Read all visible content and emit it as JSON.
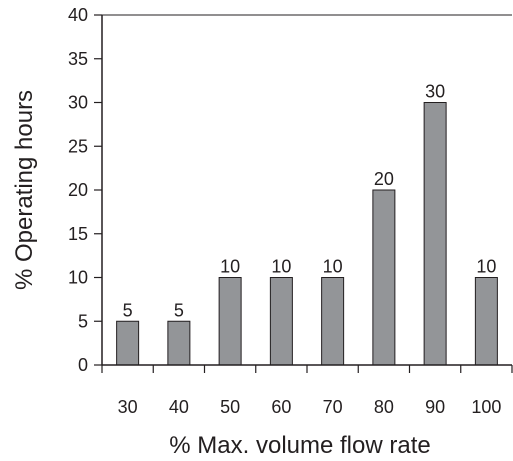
{
  "chart_data": {
    "type": "bar",
    "title": "",
    "xlabel": "% Max. volume flow rate",
    "ylabel": "% Operating hours",
    "categories": [
      "30",
      "40",
      "50",
      "60",
      "70",
      "80",
      "90",
      "100"
    ],
    "values": [
      5,
      5,
      10,
      10,
      10,
      20,
      30,
      10
    ],
    "data_labels": [
      "5",
      "5",
      "10",
      "10",
      "10",
      "20",
      "30",
      "10"
    ],
    "ylim": [
      0,
      40
    ],
    "y_ticks": [
      "0",
      "5",
      "10",
      "15",
      "20",
      "25",
      "30",
      "35",
      "40"
    ],
    "grid": false,
    "legend": "none",
    "colors": {
      "bar_fill": "#939598",
      "bar_stroke": "#231f20",
      "axis": "#231f20",
      "text": "#231f20"
    }
  }
}
